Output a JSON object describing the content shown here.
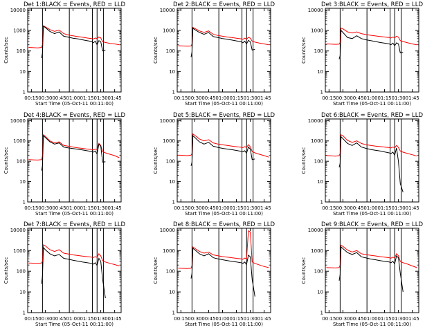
{
  "colors": {
    "events": "#000000",
    "lld": "#ff0000",
    "frame": "#000000",
    "background": "#ffffff"
  },
  "shared": {
    "x_tick_labels": [
      "00:15",
      "00:30",
      "00:45",
      "01:00",
      "01:15",
      "01:30",
      "01:45"
    ],
    "x_tick_minutes": [
      15,
      30,
      45,
      60,
      75,
      90,
      105
    ],
    "x_range_minutes": [
      11,
      112
    ],
    "y_tick_labels": [
      "1",
      "10",
      "100",
      "1000",
      "10000"
    ],
    "y_tick_values": [
      1,
      10,
      100,
      1000,
      10000
    ],
    "y_range": [
      1,
      12000
    ],
    "y_scale": "log",
    "xlabel": "Start Time (05-Oct-11 00:11:00)",
    "ylabel": "Counts/sec",
    "vertical_markers_minutes": [
      27,
      56,
      81,
      86,
      93
    ]
  },
  "chart_data": [
    {
      "type": "line",
      "title": "Det 1:BLACK = Events, RED = LLD",
      "y_scale": "log",
      "x": [
        12,
        17,
        22,
        26,
        27,
        28,
        30,
        35,
        40,
        45,
        50,
        55,
        60,
        65,
        70,
        75,
        80,
        82,
        84,
        86,
        88,
        90,
        92,
        95,
        100,
        105,
        110
      ],
      "series": [
        {
          "name": "Events",
          "color": "#000000",
          "values": [
            null,
            null,
            null,
            45,
            80,
            1600,
            1400,
            900,
            700,
            850,
            520,
            470,
            420,
            390,
            350,
            320,
            290,
            250,
            300,
            200,
            320,
            280,
            100,
            110,
            null,
            null,
            null
          ]
        },
        {
          "name": "LLD",
          "color": "#ff0000",
          "values": [
            150,
            145,
            140,
            150,
            200,
            1700,
            1500,
            1100,
            900,
            1050,
            700,
            600,
            550,
            500,
            470,
            430,
            400,
            380,
            430,
            400,
            480,
            430,
            280,
            260,
            230,
            220,
            200
          ]
        }
      ]
    },
    {
      "type": "line",
      "title": "Det 2:BLACK = Events, RED = LLD",
      "y_scale": "log",
      "x": [
        12,
        17,
        22,
        26,
        27,
        28,
        30,
        35,
        40,
        45,
        50,
        55,
        60,
        65,
        70,
        75,
        80,
        82,
        84,
        86,
        88,
        90,
        92,
        95,
        100,
        105,
        110
      ],
      "series": [
        {
          "name": "Events",
          "color": "#000000",
          "values": [
            null,
            null,
            null,
            50,
            90,
            1300,
            1100,
            800,
            650,
            800,
            500,
            450,
            400,
            370,
            340,
            310,
            280,
            250,
            300,
            220,
            330,
            280,
            110,
            120,
            null,
            null,
            null
          ]
        },
        {
          "name": "LLD",
          "color": "#ff0000",
          "values": [
            180,
            175,
            170,
            175,
            220,
            1400,
            1250,
            950,
            800,
            950,
            650,
            570,
            520,
            480,
            450,
            420,
            390,
            370,
            420,
            380,
            460,
            420,
            300,
            270,
            240,
            220,
            200
          ]
        }
      ]
    },
    {
      "type": "line",
      "title": "Det 3:BLACK = Events, RED = LLD",
      "y_scale": "log",
      "x": [
        12,
        17,
        22,
        26,
        27,
        28,
        30,
        35,
        40,
        45,
        50,
        55,
        60,
        65,
        70,
        75,
        80,
        82,
        84,
        86,
        88,
        90,
        92,
        95,
        100,
        105,
        110
      ],
      "series": [
        {
          "name": "Events",
          "color": "#000000",
          "values": [
            null,
            null,
            null,
            40,
            60,
            1000,
            800,
            450,
            400,
            550,
            400,
            350,
            320,
            290,
            260,
            240,
            220,
            200,
            240,
            180,
            250,
            220,
            80,
            85,
            null,
            null,
            null
          ]
        },
        {
          "name": "LLD",
          "color": "#ff0000",
          "values": [
            220,
            215,
            210,
            215,
            260,
            1300,
            1200,
            850,
            750,
            850,
            700,
            630,
            580,
            540,
            510,
            480,
            450,
            430,
            480,
            440,
            520,
            470,
            320,
            290,
            250,
            220,
            200
          ]
        }
      ]
    },
    {
      "type": "line",
      "title": "Det 4:BLACK = Events, RED = LLD",
      "y_scale": "log",
      "x": [
        12,
        17,
        22,
        26,
        27,
        28,
        30,
        35,
        40,
        45,
        50,
        55,
        60,
        65,
        70,
        75,
        80,
        82,
        84,
        86,
        88,
        90,
        92,
        95,
        100,
        105,
        110
      ],
      "series": [
        {
          "name": "Events",
          "color": "#000000",
          "values": [
            null,
            null,
            null,
            35,
            60,
            1800,
            1500,
            900,
            700,
            800,
            500,
            450,
            420,
            390,
            360,
            330,
            300,
            280,
            320,
            230,
            700,
            550,
            90,
            95,
            null,
            null,
            null
          ]
        },
        {
          "name": "LLD",
          "color": "#ff0000",
          "values": [
            120,
            118,
            115,
            120,
            180,
            2000,
            1700,
            1000,
            800,
            900,
            600,
            550,
            500,
            460,
            430,
            400,
            380,
            360,
            400,
            380,
            750,
            600,
            300,
            260,
            220,
            190,
            150
          ]
        }
      ]
    },
    {
      "type": "line",
      "title": "Det 5:BLACK = Events, RED = LLD",
      "y_scale": "log",
      "x": [
        12,
        17,
        22,
        26,
        27,
        28,
        30,
        35,
        40,
        45,
        50,
        55,
        60,
        65,
        70,
        75,
        80,
        82,
        84,
        86,
        88,
        90,
        92,
        95,
        100,
        105,
        110
      ],
      "series": [
        {
          "name": "Events",
          "color": "#000000",
          "values": [
            null,
            null,
            null,
            60,
            90,
            1800,
            1500,
            900,
            700,
            850,
            550,
            480,
            430,
            400,
            370,
            340,
            310,
            290,
            330,
            250,
            500,
            400,
            120,
            130,
            null,
            null,
            null
          ]
        },
        {
          "name": "LLD",
          "color": "#ff0000",
          "values": [
            200,
            195,
            190,
            200,
            240,
            2200,
            1900,
            1250,
            1000,
            1150,
            800,
            700,
            650,
            600,
            560,
            520,
            490,
            470,
            520,
            480,
            650,
            520,
            300,
            260,
            220,
            190,
            160
          ]
        }
      ]
    },
    {
      "type": "line",
      "title": "Det 6:BLACK = Events, RED = LLD",
      "y_scale": "log",
      "x": [
        12,
        17,
        22,
        26,
        27,
        28,
        30,
        35,
        40,
        45,
        50,
        55,
        60,
        65,
        70,
        75,
        80,
        82,
        84,
        86,
        88,
        90,
        92,
        95,
        100,
        105,
        110
      ],
      "series": [
        {
          "name": "Events",
          "color": "#000000",
          "values": [
            null,
            null,
            null,
            50,
            80,
            1600,
            1300,
            750,
            600,
            800,
            500,
            430,
            380,
            350,
            320,
            290,
            260,
            240,
            280,
            200,
            450,
            100,
            8,
            3,
            null,
            null,
            null
          ]
        },
        {
          "name": "LLD",
          "color": "#ff0000",
          "values": [
            190,
            185,
            180,
            190,
            240,
            2000,
            1800,
            1050,
            850,
            1000,
            750,
            650,
            600,
            560,
            530,
            500,
            470,
            450,
            500,
            460,
            600,
            480,
            320,
            280,
            240,
            210,
            180
          ]
        }
      ]
    },
    {
      "type": "line",
      "title": "Det 7:BLACK = Events, RED = LLD",
      "y_scale": "log",
      "x": [
        12,
        17,
        22,
        26,
        27,
        28,
        30,
        35,
        40,
        45,
        50,
        55,
        60,
        65,
        70,
        75,
        80,
        82,
        84,
        86,
        88,
        90,
        92,
        95,
        100,
        105,
        110
      ],
      "series": [
        {
          "name": "Events",
          "color": "#000000",
          "values": [
            null,
            null,
            null,
            25,
            60,
            1400,
            1100,
            700,
            550,
            650,
            420,
            380,
            340,
            310,
            280,
            260,
            240,
            220,
            260,
            190,
            420,
            300,
            40,
            5,
            null,
            null,
            null
          ]
        },
        {
          "name": "LLD",
          "color": "#ff0000",
          "values": [
            250,
            245,
            240,
            250,
            300,
            1900,
            1700,
            1100,
            900,
            1100,
            750,
            680,
            620,
            580,
            540,
            510,
            480,
            460,
            510,
            470,
            700,
            550,
            320,
            280,
            240,
            210,
            180
          ]
        }
      ]
    },
    {
      "type": "line",
      "title": "Det 8:BLACK = Events, RED = LLD",
      "y_scale": "log",
      "x": [
        12,
        17,
        22,
        26,
        27,
        28,
        30,
        35,
        40,
        45,
        50,
        55,
        60,
        65,
        70,
        75,
        80,
        82,
        84,
        86,
        88,
        90,
        92,
        95,
        100,
        105,
        110
      ],
      "series": [
        {
          "name": "Events",
          "color": "#000000",
          "values": [
            null,
            null,
            null,
            45,
            80,
            1300,
            1100,
            700,
            550,
            700,
            450,
            400,
            360,
            330,
            300,
            280,
            260,
            240,
            280,
            210,
            600,
            500,
            40,
            6,
            null,
            null,
            null
          ]
        },
        {
          "name": "LLD",
          "color": "#ff0000",
          "values": [
            140,
            138,
            135,
            140,
            190,
            1500,
            1300,
            900,
            750,
            850,
            620,
            560,
            510,
            480,
            450,
            420,
            400,
            380,
            430,
            400,
            9000,
            8000,
            280,
            240,
            200,
            170,
            150
          ]
        }
      ]
    },
    {
      "type": "line",
      "title": "Det 9:BLACK = Events, RED = LLD",
      "y_scale": "log",
      "x": [
        12,
        17,
        22,
        26,
        27,
        28,
        30,
        35,
        40,
        45,
        50,
        55,
        60,
        65,
        70,
        75,
        80,
        82,
        84,
        86,
        88,
        90,
        92,
        95,
        100,
        105,
        110
      ],
      "series": [
        {
          "name": "Events",
          "color": "#000000",
          "values": [
            null,
            null,
            null,
            35,
            70,
            1500,
            1250,
            800,
            650,
            800,
            500,
            440,
            390,
            360,
            330,
            300,
            280,
            260,
            300,
            230,
            550,
            450,
            80,
            10,
            null,
            null,
            null
          ]
        },
        {
          "name": "LLD",
          "color": "#ff0000",
          "values": [
            150,
            148,
            145,
            150,
            200,
            1800,
            1600,
            1050,
            850,
            1000,
            700,
            640,
            590,
            550,
            510,
            480,
            450,
            430,
            480,
            440,
            700,
            560,
            300,
            260,
            220,
            180,
            150
          ]
        }
      ]
    }
  ]
}
